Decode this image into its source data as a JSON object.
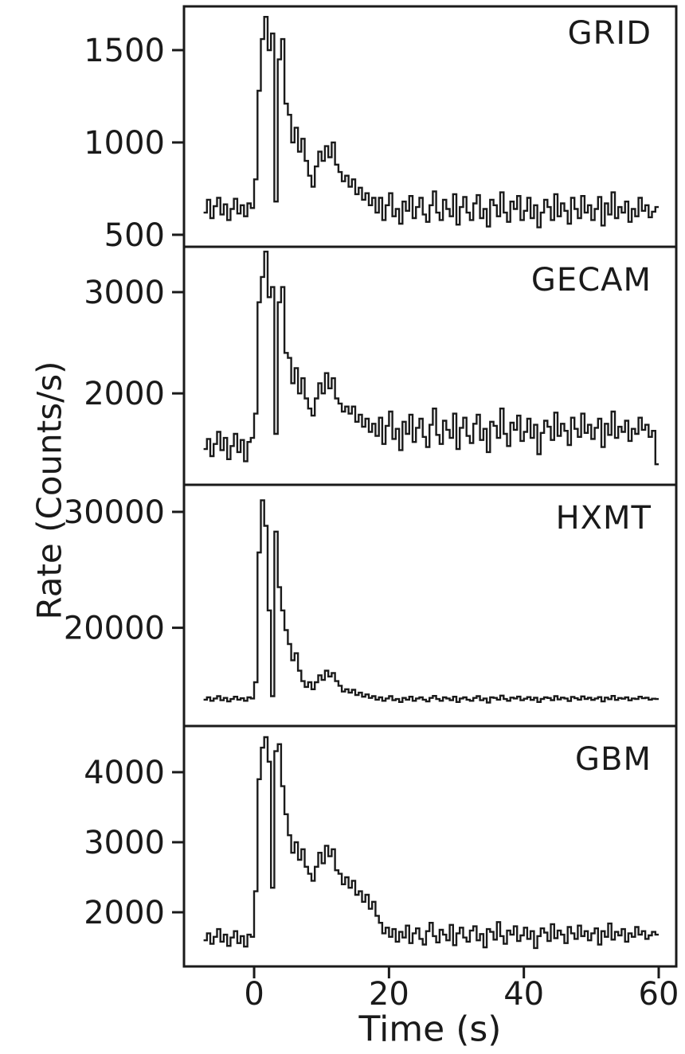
{
  "figure": {
    "background": "#ffffff",
    "line_color": "#1a1a1a",
    "frame_color": "#1a1a1a"
  },
  "chart_data": {
    "type": "line",
    "style": "step",
    "title": "",
    "xlabel": "Time (s)",
    "ylabel": "Rate (Counts/s)",
    "xlim": [
      -10.4,
      62.6
    ],
    "xticks": [
      0,
      20,
      40,
      60
    ],
    "x_start": -7.5,
    "x_step": 0.5,
    "grid": false,
    "legend": "none",
    "panels": [
      {
        "label": "GRID",
        "ylim": [
          435,
          1737
        ],
        "yticks": [
          500,
          1000,
          1500
        ],
        "values": [
          620,
          690,
          590,
          655,
          700,
          610,
          665,
          580,
          640,
          695,
          615,
          660,
          600,
          670,
          645,
          800,
          1280,
          1560,
          1680,
          1500,
          1590,
          680,
          1450,
          1560,
          1210,
          1150,
          1000,
          1080,
          950,
          1020,
          900,
          820,
          760,
          870,
          950,
          900,
          980,
          920,
          1000,
          880,
          840,
          790,
          820,
          760,
          800,
          720,
          755,
          690,
          725,
          660,
          700,
          620,
          700,
          580,
          660,
          725,
          600,
          640,
          560,
          680,
          630,
          710,
          590,
          650,
          700,
          610,
          570,
          660,
          735,
          620,
          580,
          690,
          640,
          600,
          720,
          555,
          650,
          705,
          620,
          580,
          670,
          715,
          590,
          640,
          545,
          690,
          660,
          600,
          730,
          620,
          570,
          680,
          640,
          710,
          580,
          630,
          700,
          590,
          660,
          540,
          620,
          690,
          650,
          580,
          720,
          600,
          670,
          630,
          560,
          700,
          640,
          590,
          710,
          620,
          660,
          580,
          640,
          705,
          550,
          670,
          610,
          730,
          590,
          650,
          620,
          680,
          570,
          640,
          600,
          700,
          630,
          660,
          595,
          625,
          650
        ]
      },
      {
        "label": "GECAM",
        "ylim": [
          1097,
          3448
        ],
        "yticks": [
          2000,
          3000
        ],
        "values": [
          1450,
          1550,
          1380,
          1500,
          1620,
          1440,
          1560,
          1350,
          1480,
          1600,
          1420,
          1540,
          1330,
          1520,
          1560,
          1800,
          2900,
          3150,
          3400,
          2950,
          3050,
          1600,
          2900,
          3050,
          2400,
          2350,
          2100,
          2250,
          2000,
          2150,
          1950,
          1850,
          1780,
          1950,
          2100,
          2000,
          2200,
          2050,
          2150,
          1950,
          1900,
          1820,
          1870,
          1800,
          1870,
          1720,
          1790,
          1670,
          1750,
          1620,
          1700,
          1580,
          1760,
          1500,
          1680,
          1820,
          1550,
          1650,
          1440,
          1720,
          1600,
          1790,
          1520,
          1660,
          1750,
          1570,
          1470,
          1690,
          1850,
          1590,
          1500,
          1730,
          1640,
          1560,
          1800,
          1450,
          1660,
          1760,
          1580,
          1510,
          1700,
          1790,
          1540,
          1650,
          1420,
          1720,
          1680,
          1560,
          1850,
          1600,
          1480,
          1710,
          1640,
          1780,
          1530,
          1620,
          1750,
          1560,
          1690,
          1400,
          1610,
          1730,
          1670,
          1540,
          1810,
          1580,
          1700,
          1630,
          1490,
          1760,
          1650,
          1570,
          1800,
          1610,
          1690,
          1550,
          1660,
          1750,
          1470,
          1700,
          1590,
          1820,
          1560,
          1670,
          1620,
          1730,
          1530,
          1650,
          1600,
          1760,
          1640,
          1690,
          1570,
          1630,
          1300
        ]
      },
      {
        "label": "HXMT",
        "ylim": [
          11525,
          32335
        ],
        "yticks": [
          20000,
          30000
        ],
        "values": [
          13800,
          14000,
          13700,
          13900,
          14100,
          13750,
          13950,
          13650,
          13850,
          14050,
          13800,
          13920,
          13700,
          14000,
          13900,
          15300,
          26500,
          31000,
          28800,
          21500,
          14100,
          28300,
          23500,
          21500,
          19800,
          18600,
          17200,
          17800,
          16300,
          15400,
          14900,
          15300,
          14700,
          15300,
          15900,
          15500,
          16300,
          15800,
          16100,
          15400,
          15000,
          14500,
          14700,
          14400,
          14650,
          14200,
          14400,
          14050,
          14250,
          13950,
          14100,
          13800,
          14000,
          13700,
          13900,
          14100,
          13750,
          13850,
          13600,
          13950,
          13800,
          14050,
          13700,
          13900,
          14000,
          13800,
          13650,
          13950,
          14120,
          13850,
          13700,
          14000,
          13900,
          13750,
          14050,
          13600,
          13900,
          14000,
          13800,
          13700,
          13950,
          14100,
          13750,
          13900,
          13550,
          14000,
          13950,
          13800,
          14150,
          13850,
          13700,
          13980,
          13900,
          14060,
          13750,
          13880,
          14020,
          13780,
          13960,
          13600,
          13860,
          14000,
          13940,
          13760,
          14100,
          13820,
          13980,
          13900,
          13680,
          14040,
          13920,
          13800,
          14080,
          13860,
          13960,
          13780,
          13900,
          14020,
          13650,
          13980,
          13840,
          14120,
          13780,
          13940,
          13880,
          14000,
          13740,
          13900,
          13850,
          14050,
          13920,
          13960,
          13800,
          13880,
          13850
        ]
      },
      {
        "label": "GBM",
        "ylim": [
          1227,
          4659
        ],
        "yticks": [
          2000,
          3000,
          4000
        ],
        "values": [
          1600,
          1700,
          1550,
          1650,
          1760,
          1580,
          1680,
          1520,
          1640,
          1730,
          1560,
          1660,
          1510,
          1680,
          1650,
          2300,
          3900,
          4350,
          4500,
          4150,
          2350,
          4300,
          4400,
          3800,
          3400,
          3100,
          2850,
          3000,
          2750,
          2900,
          2650,
          2550,
          2450,
          2650,
          2850,
          2700,
          2950,
          2800,
          2900,
          2600,
          2550,
          2400,
          2500,
          2350,
          2450,
          2250,
          2300,
          2150,
          2250,
          2050,
          2150,
          1950,
          1850,
          1700,
          1780,
          1650,
          1760,
          1580,
          1720,
          1640,
          1810,
          1560,
          1700,
          1770,
          1620,
          1540,
          1730,
          1850,
          1660,
          1570,
          1750,
          1680,
          1600,
          1820,
          1530,
          1700,
          1780,
          1640,
          1580,
          1740,
          1800,
          1600,
          1690,
          1500,
          1760,
          1720,
          1610,
          1860,
          1660,
          1550,
          1740,
          1680,
          1800,
          1590,
          1670,
          1780,
          1620,
          1730,
          1490,
          1660,
          1770,
          1710,
          1590,
          1830,
          1630,
          1740,
          1680,
          1560,
          1790,
          1700,
          1620,
          1810,
          1660,
          1730,
          1600,
          1700,
          1770,
          1540,
          1730,
          1650,
          1840,
          1610,
          1720,
          1670,
          1760,
          1580,
          1700,
          1650,
          1790,
          1680,
          1730,
          1620,
          1670,
          1720,
          1680
        ]
      }
    ]
  }
}
